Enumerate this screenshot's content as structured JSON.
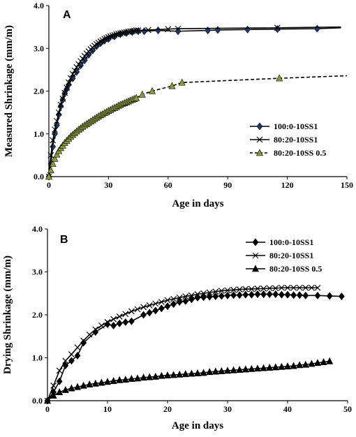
{
  "chart_data": [
    {
      "type": "line",
      "panel_label": "A",
      "xlabel": "Age in days",
      "ylabel": "Measured Shrinkage (mm/m)",
      "xlim": [
        0,
        150
      ],
      "ylim": [
        0,
        4.0
      ],
      "xticks": [
        0,
        30,
        60,
        90,
        120,
        150
      ],
      "xtick_labels": [
        "0",
        "30",
        "60",
        "90",
        "120",
        "150"
      ],
      "yticks": [
        0,
        1,
        2,
        3,
        4
      ],
      "ytick_labels": [
        "0.0",
        "1.0",
        "2.0",
        "3.0",
        "4.0"
      ],
      "grid": false,
      "legend_position": "right-middle",
      "series": [
        {
          "name": "100:0-10SS1",
          "marker": "diamond",
          "color": "#1f3a6e",
          "line": "solid",
          "x": [
            0,
            1,
            2,
            3,
            4,
            5,
            6,
            7,
            8,
            9,
            10,
            12,
            14,
            16,
            18,
            20,
            22,
            24,
            26,
            28,
            30,
            33,
            36,
            39,
            42,
            45,
            48,
            55,
            65,
            80,
            85,
            100,
            115,
            135,
            147
          ],
          "y": [
            0.0,
            0.3,
            0.7,
            1.0,
            1.2,
            1.45,
            1.65,
            1.8,
            1.95,
            2.05,
            2.15,
            2.3,
            2.45,
            2.6,
            2.72,
            2.85,
            2.95,
            3.05,
            3.12,
            3.18,
            3.22,
            3.28,
            3.33,
            3.36,
            3.38,
            3.4,
            3.4,
            3.42,
            3.4,
            3.42,
            3.43,
            3.44,
            3.45,
            3.46,
            3.48
          ]
        },
        {
          "name": "80:20-10SS1",
          "marker": "x",
          "color": "#000000",
          "line": "solid",
          "x": [
            0,
            1,
            2,
            3,
            4,
            5,
            6,
            7,
            8,
            9,
            10,
            11,
            12,
            13,
            14,
            15,
            16,
            17,
            18,
            19,
            20,
            21,
            22,
            23,
            24,
            25,
            26,
            27,
            28,
            29,
            30,
            31,
            32,
            33,
            34,
            35,
            36,
            37,
            38,
            39,
            40,
            41,
            42,
            43,
            44,
            45,
            50,
            60,
            65,
            115,
            147
          ],
          "y": [
            0.0,
            0.5,
            0.85,
            1.1,
            1.3,
            1.5,
            1.68,
            1.82,
            1.96,
            2.08,
            2.2,
            2.3,
            2.4,
            2.48,
            2.56,
            2.63,
            2.7,
            2.76,
            2.82,
            2.88,
            2.93,
            2.98,
            3.02,
            3.06,
            3.1,
            3.13,
            3.16,
            3.19,
            3.22,
            3.24,
            3.26,
            3.28,
            3.3,
            3.31,
            3.33,
            3.34,
            3.35,
            3.36,
            3.37,
            3.38,
            3.39,
            3.4,
            3.4,
            3.41,
            3.42,
            3.42,
            3.43,
            3.45,
            3.46,
            3.48,
            3.5
          ]
        },
        {
          "name": "80:20-10SS 0.5",
          "marker": "triangle",
          "color": "#8a9a3a",
          "line": "dashed",
          "x": [
            0,
            1,
            2,
            3,
            4,
            5,
            6,
            7,
            8,
            9,
            10,
            11,
            12,
            13,
            14,
            15,
            16,
            17,
            18,
            19,
            20,
            21,
            22,
            23,
            24,
            25,
            26,
            27,
            28,
            29,
            30,
            31,
            32,
            33,
            34,
            35,
            36,
            37,
            38,
            39,
            40,
            41,
            42,
            43,
            44,
            47,
            52,
            62,
            67,
            116,
            150
          ],
          "y": [
            0.0,
            0.15,
            0.3,
            0.42,
            0.52,
            0.6,
            0.67,
            0.73,
            0.79,
            0.84,
            0.89,
            0.94,
            0.98,
            1.02,
            1.06,
            1.1,
            1.13,
            1.17,
            1.2,
            1.23,
            1.26,
            1.29,
            1.32,
            1.35,
            1.38,
            1.41,
            1.44,
            1.46,
            1.49,
            1.51,
            1.54,
            1.56,
            1.59,
            1.61,
            1.63,
            1.66,
            1.68,
            1.7,
            1.72,
            1.74,
            1.76,
            1.78,
            1.8,
            1.82,
            1.84,
            1.92,
            2.0,
            2.12,
            2.2,
            2.3,
            2.36
          ]
        }
      ]
    },
    {
      "type": "line",
      "panel_label": "B",
      "xlabel": "Age in days",
      "ylabel": "Drying Shrinkage (mm/m)",
      "xlim": [
        0,
        50
      ],
      "ylim": [
        0,
        4.0
      ],
      "xticks": [
        0,
        10,
        20,
        30,
        40,
        50
      ],
      "xtick_labels": [
        "0",
        "10",
        "20",
        "30",
        "40",
        "50"
      ],
      "yticks": [
        0,
        1,
        2,
        3,
        4
      ],
      "ytick_labels": [
        "0.0",
        "1.0",
        "2.0",
        "3.0",
        "4.0"
      ],
      "grid": false,
      "legend_position": "top-right",
      "series": [
        {
          "name": "100:0-10SS1",
          "marker": "diamond",
          "color": "#000000",
          "line": "solid",
          "x": [
            0,
            1,
            2,
            3,
            4,
            5,
            6,
            8,
            10,
            11,
            12,
            13,
            14,
            16,
            17,
            18,
            19,
            20,
            21,
            22,
            23,
            24,
            25,
            26,
            27,
            28,
            29,
            30,
            31,
            32,
            33,
            34,
            35,
            36,
            37,
            38,
            39,
            40,
            41,
            42,
            43,
            45,
            47,
            49
          ],
          "y": [
            0.0,
            0.2,
            0.45,
            0.82,
            0.93,
            1.05,
            1.35,
            1.6,
            1.78,
            1.75,
            1.8,
            1.83,
            1.85,
            2.0,
            2.05,
            2.1,
            2.15,
            2.2,
            2.25,
            2.3,
            2.32,
            2.36,
            2.4,
            2.41,
            2.42,
            2.43,
            2.44,
            2.45,
            2.46,
            2.46,
            2.47,
            2.47,
            2.48,
            2.48,
            2.48,
            2.48,
            2.47,
            2.47,
            2.46,
            2.46,
            2.45,
            2.45,
            2.44,
            2.43
          ]
        },
        {
          "name": "80:20-10SS1",
          "marker": "x",
          "color": "#000000",
          "line": "solid",
          "x": [
            0,
            1,
            2,
            3,
            4,
            5,
            6,
            7,
            8,
            9,
            10,
            11,
            12,
            13,
            14,
            15,
            16,
            17,
            18,
            19,
            20,
            21,
            22,
            23,
            24,
            25,
            26,
            27,
            28,
            29,
            30,
            31,
            32,
            33,
            34,
            35,
            36,
            37,
            38,
            39,
            40,
            41,
            42,
            43,
            44,
            45
          ],
          "y": [
            0.0,
            0.35,
            0.7,
            0.93,
            1.08,
            1.24,
            1.4,
            1.54,
            1.66,
            1.75,
            1.83,
            1.9,
            1.96,
            2.02,
            2.08,
            2.13,
            2.18,
            2.22,
            2.26,
            2.3,
            2.34,
            2.37,
            2.4,
            2.43,
            2.45,
            2.48,
            2.5,
            2.52,
            2.54,
            2.56,
            2.57,
            2.58,
            2.59,
            2.6,
            2.6,
            2.61,
            2.61,
            2.62,
            2.62,
            2.63,
            2.63,
            2.63,
            2.63,
            2.63,
            2.63,
            2.63
          ]
        },
        {
          "name": "80:20-10SS 0.5",
          "marker": "triangle",
          "color": "#000000",
          "line": "solid",
          "x": [
            0,
            1,
            2,
            3,
            4,
            5,
            6,
            7,
            8,
            9,
            10,
            11,
            12,
            13,
            14,
            15,
            16,
            17,
            18,
            19,
            20,
            21,
            22,
            23,
            24,
            25,
            26,
            27,
            28,
            29,
            30,
            31,
            32,
            33,
            34,
            35,
            36,
            37,
            38,
            39,
            40,
            41,
            42,
            43,
            44,
            45,
            46,
            47
          ],
          "y": [
            0.0,
            0.12,
            0.2,
            0.25,
            0.29,
            0.32,
            0.35,
            0.38,
            0.4,
            0.42,
            0.44,
            0.46,
            0.48,
            0.49,
            0.51,
            0.52,
            0.54,
            0.55,
            0.56,
            0.58,
            0.59,
            0.6,
            0.61,
            0.62,
            0.63,
            0.64,
            0.65,
            0.67,
            0.68,
            0.69,
            0.7,
            0.71,
            0.72,
            0.73,
            0.74,
            0.75,
            0.76,
            0.77,
            0.78,
            0.79,
            0.8,
            0.81,
            0.83,
            0.84,
            0.86,
            0.88,
            0.9,
            0.92
          ]
        }
      ]
    }
  ]
}
